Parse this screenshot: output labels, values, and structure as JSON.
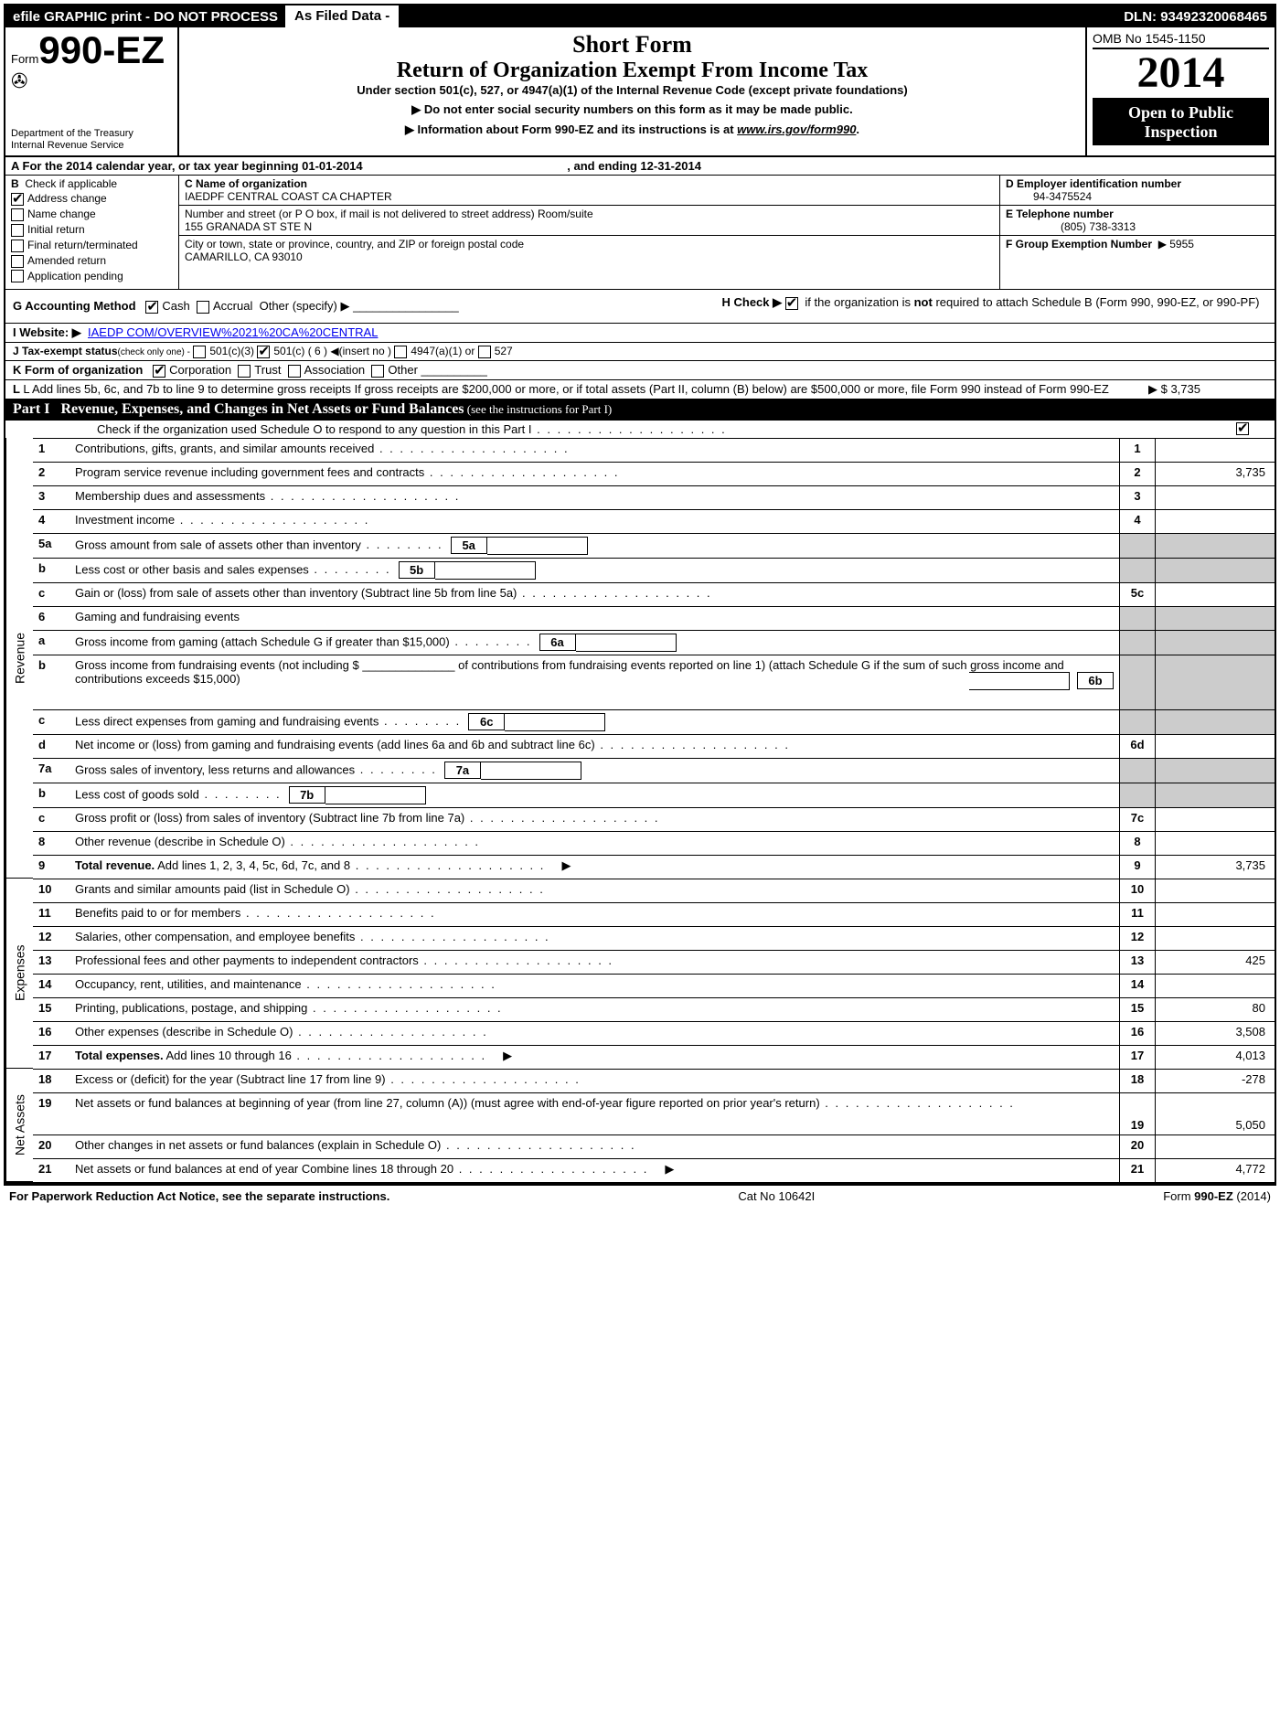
{
  "top": {
    "efile": "efile GRAPHIC print - DO NOT PROCESS",
    "asfiled": "As Filed Data -",
    "dln": "DLN: 93492320068465"
  },
  "head": {
    "form_prefix": "Form",
    "form_num": "990-EZ",
    "dept1": "Department of the Treasury",
    "dept2": "Internal Revenue Service",
    "short_form": "Short Form",
    "return_title": "Return of Organization Exempt From Income Tax",
    "under_section": "Under section 501(c), 527, or 4947(a)(1) of the Internal Revenue Code (except private foundations)",
    "arrow1": "▶ Do not enter social security numbers on this form as it may be made public.",
    "arrow2_pre": "▶ Information about Form 990-EZ and its instructions is at ",
    "arrow2_link": "www.irs.gov/form990",
    "arrow2_post": ".",
    "omb": "OMB No 1545-1150",
    "year": "2014",
    "open1": "Open to Public",
    "open2": "Inspection"
  },
  "rowA": {
    "label_a": "A",
    "text": " For the 2014 calendar year, or tax year beginning 01-01-2014",
    "ending": ", and ending 12-31-2014"
  },
  "colB": {
    "label": "B",
    "check_if": "Check if applicable",
    "items": [
      {
        "label": "Address change",
        "checked": true
      },
      {
        "label": "Name change",
        "checked": false
      },
      {
        "label": "Initial return",
        "checked": false
      },
      {
        "label": "Final return/terminated",
        "checked": false
      },
      {
        "label": "Amended return",
        "checked": false
      },
      {
        "label": "Application pending",
        "checked": false
      }
    ]
  },
  "colC": {
    "name_label": "C Name of organization",
    "name": "IAEDPF CENTRAL COAST CA CHAPTER",
    "street_label": "Number and street (or P O box, if mail is not delivered to street address) Room/suite",
    "street": "155 GRANADA ST STE N",
    "city_label": "City or town, state or province, country, and ZIP or foreign postal code",
    "city": "CAMARILLO, CA  93010"
  },
  "colDEF": {
    "d_label": "D Employer identification number",
    "d_val": "94-3475524",
    "e_label": "E Telephone number",
    "e_val": "(805) 738-3313",
    "f_label": "F Group Exemption Number",
    "f_val": "▶ 5955"
  },
  "lines": {
    "g_label": "G Accounting Method",
    "g_cash": "Cash",
    "g_accrual": "Accrual",
    "g_other": "Other (specify) ▶",
    "h_text1": "H  Check ▶",
    "h_text2": " if the organization is ",
    "h_not": "not",
    "h_text3": " required to attach Schedule B (Form 990, 990-EZ, or 990-PF)",
    "i_label": "I Website: ▶",
    "i_val": "IAEDP COM/OVERVIEW%2021%20CA%20CENTRAL",
    "j_label": "J Tax-exempt status",
    "j_sub": "(check only one) -",
    "j_501c3": "501(c)(3)",
    "j_501c": "501(c) ( 6 ) ◀(insert no )",
    "j_4947": "4947(a)(1) or",
    "j_527": "527",
    "k_label": "K Form of organization",
    "k_corp": "Corporation",
    "k_trust": "Trust",
    "k_assoc": "Association",
    "k_other": "Other",
    "l_text": "L Add lines 5b, 6c, and 7b to line 9 to determine gross receipts If gross receipts are $200,000 or more, or if total assets (Part II, column (B) below) are $500,000 or more, file Form 990 instead of Form 990-EZ",
    "l_val": "▶ $ 3,735"
  },
  "part1": {
    "label": "Part I",
    "title": "Revenue, Expenses, and Changes in Net Assets or Fund Balances",
    "title_sub": " (see the instructions for Part I)",
    "check_line": "Check if the organization used Schedule O to respond to any question in this Part I"
  },
  "sidecats": {
    "rev": "Revenue",
    "exp": "Expenses",
    "na": "Net Assets"
  },
  "rows": {
    "r1": {
      "n": "1",
      "d": "Contributions, gifts, grants, and similar amounts received",
      "rn": "1",
      "v": ""
    },
    "r2": {
      "n": "2",
      "d": "Program service revenue including government fees and contracts",
      "rn": "2",
      "v": "3,735"
    },
    "r3": {
      "n": "3",
      "d": "Membership dues and assessments",
      "rn": "3",
      "v": ""
    },
    "r4": {
      "n": "4",
      "d": "Investment income",
      "rn": "4",
      "v": ""
    },
    "r5a": {
      "n": "5a",
      "d": "Gross amount from sale of assets other than inventory",
      "sb": "5a"
    },
    "r5b": {
      "n": "b",
      "d": "Less  cost or other basis and sales expenses",
      "sb": "5b"
    },
    "r5c": {
      "n": "c",
      "d": "Gain or (loss) from sale of assets other than inventory (Subtract line 5b from line 5a)",
      "rn": "5c",
      "v": ""
    },
    "r6": {
      "n": "6",
      "d": "Gaming and fundraising events"
    },
    "r6a": {
      "n": "a",
      "d": "Gross income from gaming (attach Schedule G if greater than $15,000)",
      "sb": "6a"
    },
    "r6b": {
      "n": "b",
      "d": "Gross income from fundraising events (not including $ ______________ of contributions from fundraising events reported on line 1) (attach Schedule G if the sum of such gross income and contributions exceeds $15,000)",
      "sb": "6b"
    },
    "r6c": {
      "n": "c",
      "d": "Less  direct expenses from gaming and fundraising events",
      "sb": "6c"
    },
    "r6d": {
      "n": "d",
      "d": "Net income or (loss) from gaming and fundraising events (add lines 6a and 6b and subtract line 6c)",
      "rn": "6d",
      "v": ""
    },
    "r7a": {
      "n": "7a",
      "d": "Gross sales of inventory, less returns and allowances",
      "sb": "7a"
    },
    "r7b": {
      "n": "b",
      "d": "Less  cost of goods sold",
      "sb": "7b"
    },
    "r7c": {
      "n": "c",
      "d": "Gross profit or (loss) from sales of inventory (Subtract line 7b from line 7a)",
      "rn": "7c",
      "v": ""
    },
    "r8": {
      "n": "8",
      "d": "Other revenue (describe in Schedule O)",
      "rn": "8",
      "v": ""
    },
    "r9": {
      "n": "9",
      "d": "Total revenue. Add lines 1, 2, 3, 4, 5c, 6d, 7c, and 8",
      "rn": "9",
      "v": "3,735",
      "bold": true,
      "arrow": true
    },
    "r10": {
      "n": "10",
      "d": "Grants and similar amounts paid (list in Schedule O)",
      "rn": "10",
      "v": ""
    },
    "r11": {
      "n": "11",
      "d": "Benefits paid to or for members",
      "rn": "11",
      "v": ""
    },
    "r12": {
      "n": "12",
      "d": "Salaries, other compensation, and employee benefits",
      "rn": "12",
      "v": ""
    },
    "r13": {
      "n": "13",
      "d": "Professional fees and other payments to independent contractors",
      "rn": "13",
      "v": "425"
    },
    "r14": {
      "n": "14",
      "d": "Occupancy, rent, utilities, and maintenance",
      "rn": "14",
      "v": ""
    },
    "r15": {
      "n": "15",
      "d": "Printing, publications, postage, and shipping",
      "rn": "15",
      "v": "80"
    },
    "r16": {
      "n": "16",
      "d": "Other expenses (describe in Schedule O)",
      "rn": "16",
      "v": "3,508"
    },
    "r17": {
      "n": "17",
      "d": "Total expenses. Add lines 10 through 16",
      "rn": "17",
      "v": "4,013",
      "bold": true,
      "arrow": true
    },
    "r18": {
      "n": "18",
      "d": "Excess or (deficit) for the year (Subtract line 17 from line 9)",
      "rn": "18",
      "v": "-278"
    },
    "r19": {
      "n": "19",
      "d": "Net assets or fund balances at beginning of year (from line 27, column (A)) (must agree with end-of-year figure reported on prior year's return)",
      "rn": "19",
      "v": "5,050"
    },
    "r20": {
      "n": "20",
      "d": "Other changes in net assets or fund balances (explain in Schedule O)",
      "rn": "20",
      "v": ""
    },
    "r21": {
      "n": "21",
      "d": "Net assets or fund balances at end of year Combine lines 18 through 20",
      "rn": "21",
      "v": "4,772",
      "arrow": true
    }
  },
  "footer": {
    "left": "For Paperwork Reduction Act Notice, see the separate instructions.",
    "mid": "Cat No 10642I",
    "right": "Form 990-EZ (2014)"
  }
}
